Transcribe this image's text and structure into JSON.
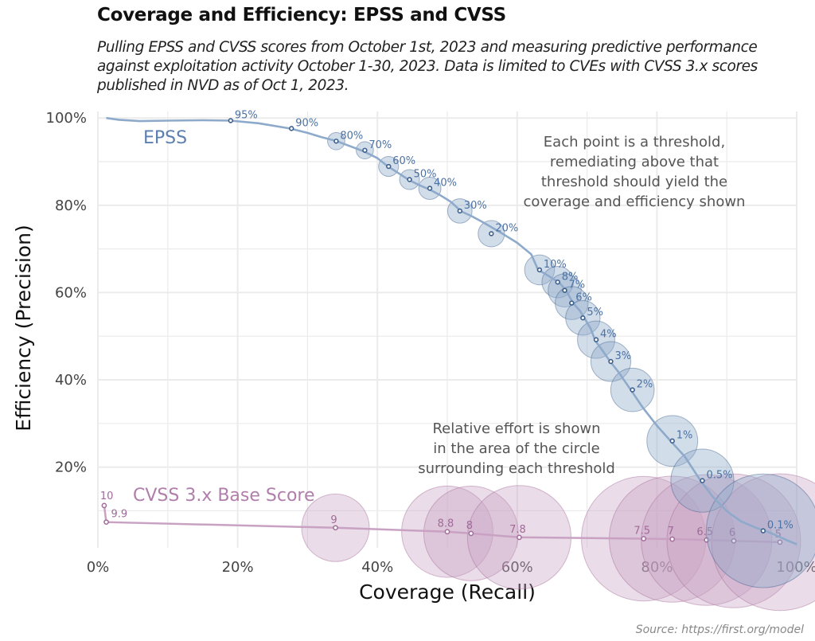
{
  "title": "Coverage and Efficiency: EPSS and CVSS",
  "subtitle": "Pulling EPSS and CVSS scores from October 1st, 2023 and measuring predictive performance against exploitation activity October 1-30, 2023. Data is limited to CVEs with CVSS 3.x scores published in NVD as of Oct 1, 2023.",
  "source": "Source: https://first.org/model",
  "colors": {
    "epss": "#8eaacb",
    "epss_point": "#3d5f8c",
    "cvss": "#c9a2c3",
    "cvss_point": "#a36b9a",
    "grid": "#ebebeb"
  },
  "chart_data": {
    "type": "scatter",
    "xlabel": "Coverage (Recall)",
    "ylabel": "Efficiency (Precision)",
    "xlim": [
      0,
      100
    ],
    "ylim": [
      1.5,
      101.5
    ],
    "x_ticks": [
      "0%",
      "20%",
      "40%",
      "60%",
      "80%",
      "100%"
    ],
    "y_ticks": [
      "20%",
      "40%",
      "60%",
      "80%",
      "100%"
    ],
    "grid": true,
    "annotations": [
      "Each point is a threshold,",
      "remediating above that",
      "threshold should yield the",
      "coverage and efficiency shown",
      "Relative effort is shown",
      "in the area of the circle",
      "surrounding each threshold"
    ],
    "series": [
      {
        "name": "EPSS",
        "curve": [
          [
            1.2,
            100
          ],
          [
            3,
            99.6
          ],
          [
            6,
            99.3
          ],
          [
            10,
            99.4
          ],
          [
            15,
            99.5
          ],
          [
            19,
            99.4
          ],
          [
            23,
            98.8
          ],
          [
            27.5,
            97.6
          ],
          [
            30,
            96.6
          ],
          [
            32,
            95.6
          ],
          [
            34,
            94.8
          ],
          [
            36,
            93.6
          ],
          [
            38,
            92.4
          ],
          [
            40,
            90.8
          ],
          [
            41.5,
            88.9
          ],
          [
            43,
            87.4
          ],
          [
            44.5,
            85.8
          ],
          [
            46,
            84.6
          ],
          [
            47.5,
            83.6
          ],
          [
            49,
            82.3
          ],
          [
            50.5,
            80.8
          ],
          [
            52,
            78.6
          ],
          [
            53.5,
            77.5
          ],
          [
            55,
            76.2
          ],
          [
            56.5,
            74.8
          ],
          [
            58,
            73.4
          ],
          [
            60,
            71.4
          ],
          [
            62,
            68.8
          ],
          [
            63,
            65.2
          ],
          [
            64,
            64.3
          ],
          [
            65,
            63.3
          ],
          [
            66,
            62.3
          ],
          [
            67,
            60.5
          ],
          [
            68,
            57.6
          ],
          [
            69,
            55.8
          ],
          [
            69.6,
            54.2
          ],
          [
            70.5,
            51.8
          ],
          [
            71.2,
            48.9
          ],
          [
            72,
            47.2
          ],
          [
            73.3,
            44.2
          ],
          [
            74.5,
            41.8
          ],
          [
            76.3,
            37.6
          ],
          [
            78,
            33.6
          ],
          [
            80,
            29.5
          ],
          [
            82,
            25.9
          ],
          [
            84,
            22.4
          ],
          [
            86.2,
            17
          ],
          [
            88,
            13.2
          ],
          [
            90,
            9.9
          ],
          [
            92,
            7.6
          ],
          [
            94,
            6.2
          ],
          [
            95.5,
            5.4
          ],
          [
            97,
            4.4
          ],
          [
            98.5,
            3.3
          ],
          [
            100,
            2.3
          ]
        ],
        "points": [
          {
            "label": "95%",
            "x": 19,
            "y": 99.4,
            "effort": 0.0
          },
          {
            "label": "90%",
            "x": 27.7,
            "y": 97.6,
            "effort": 0.0
          },
          {
            "label": "80%",
            "x": 34.1,
            "y": 94.7,
            "effort": 0.15
          },
          {
            "label": "70%",
            "x": 38.2,
            "y": 92.6,
            "effort": 0.15
          },
          {
            "label": "60%",
            "x": 41.6,
            "y": 88.9,
            "effort": 0.2
          },
          {
            "label": "50%",
            "x": 44.6,
            "y": 85.9,
            "effort": 0.2
          },
          {
            "label": "40%",
            "x": 47.5,
            "y": 83.9,
            "effort": 0.25
          },
          {
            "label": "30%",
            "x": 51.8,
            "y": 78.7,
            "effort": 0.3
          },
          {
            "label": "20%",
            "x": 56.3,
            "y": 73.5,
            "effort": 0.35
          },
          {
            "label": "10%",
            "x": 63.2,
            "y": 65.2,
            "effort": 0.45
          },
          {
            "label": "8%",
            "x": 65.8,
            "y": 62.4,
            "effort": 0.5
          },
          {
            "label": "7%",
            "x": 66.8,
            "y": 60.5,
            "effort": 0.55
          },
          {
            "label": "6%",
            "x": 67.8,
            "y": 57.6,
            "effort": 0.55
          },
          {
            "label": "5%",
            "x": 69.4,
            "y": 54.2,
            "effort": 0.6
          },
          {
            "label": "4%",
            "x": 71.3,
            "y": 49.2,
            "effort": 0.7
          },
          {
            "label": "3%",
            "x": 73.4,
            "y": 44.2,
            "effort": 0.8
          },
          {
            "label": "2%",
            "x": 76.5,
            "y": 37.7,
            "effort": 0.95
          },
          {
            "label": "1%",
            "x": 82.2,
            "y": 26,
            "effort": 1.3
          },
          {
            "label": "0.5%",
            "x": 86.5,
            "y": 16.9,
            "effort": 2.0
          },
          {
            "label": "0.1%",
            "x": 95.2,
            "y": 5.4,
            "effort": 6.5
          }
        ]
      },
      {
        "name": "CVSS 3.x Base Score",
        "points": [
          {
            "label": "10",
            "x": 0.9,
            "y": 11.2,
            "effort": 0.0
          },
          {
            "label": "9.9",
            "x": 1.2,
            "y": 7.4,
            "effort": 0.0
          },
          {
            "label": "9",
            "x": 34,
            "y": 6.1,
            "effort": 2.3
          },
          {
            "label": "8.8",
            "x": 50,
            "y": 5.2,
            "effort": 4.2
          },
          {
            "label": "8",
            "x": 53.4,
            "y": 4.8,
            "effort": 4.5
          },
          {
            "label": "7.8",
            "x": 60.3,
            "y": 3.9,
            "effort": 5.4
          },
          {
            "label": "7.5",
            "x": 78.1,
            "y": 3.6,
            "effort": 7.8
          },
          {
            "label": "7",
            "x": 82.2,
            "y": 3.5,
            "effort": 8.0
          },
          {
            "label": "6.5",
            "x": 87.1,
            "y": 3.3,
            "effort": 8.6
          },
          {
            "label": "6",
            "x": 91,
            "y": 3.1,
            "effort": 9.0
          },
          {
            "label": "5",
            "x": 97.6,
            "y": 2.8,
            "effort": 9.4
          }
        ]
      }
    ]
  }
}
